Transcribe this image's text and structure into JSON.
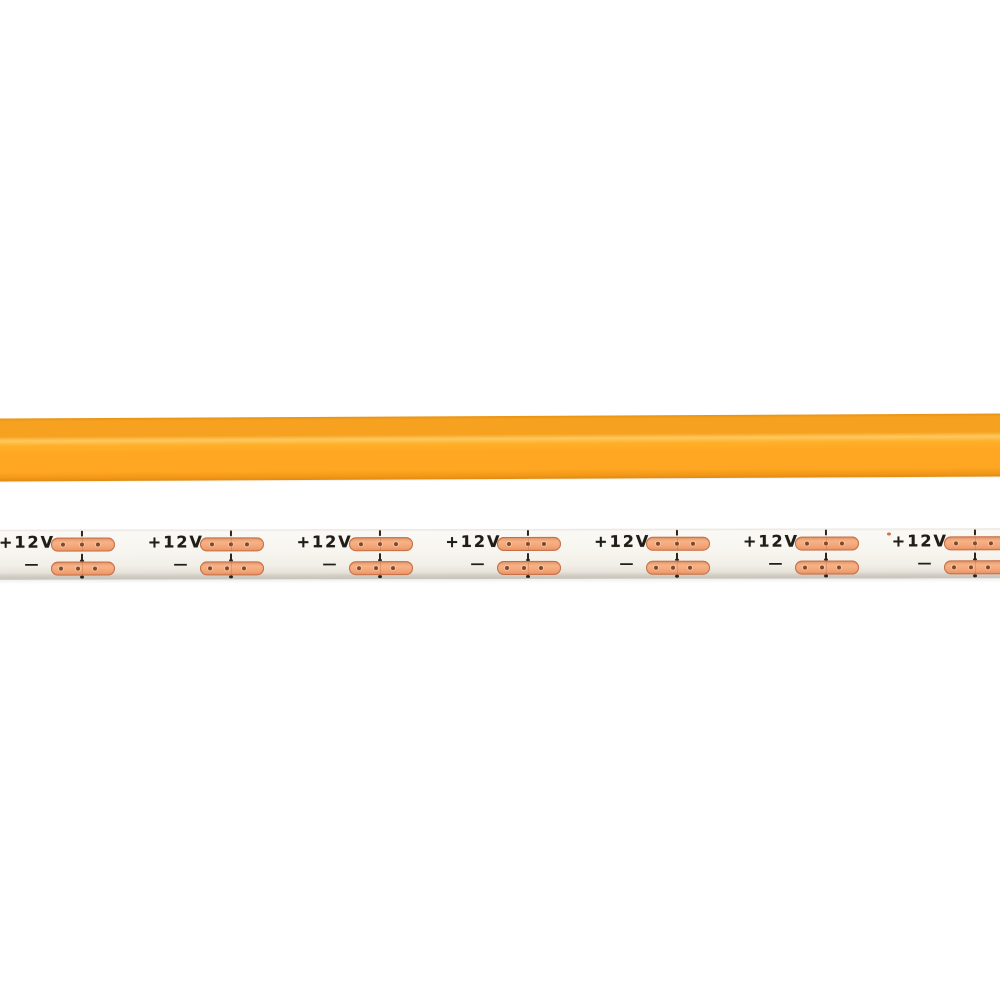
{
  "scene": {
    "background": "#ffffff",
    "description": "COB LED strip light, front phosphor view above and PCB back view below"
  },
  "front_strip": {
    "main_color": "#ffa722",
    "bevel_color": "#f6a120",
    "highlight_color": "#ffc95e",
    "edge_dark_color": "#e89214"
  },
  "back_strip": {
    "board_color": "#f7f5ef",
    "edge_shadow_color": "#cbc7be",
    "segment_count": 7,
    "voltage_label": "+12V",
    "minus_label": "−",
    "label_color": "#201d18",
    "mark_color": "#2a241c",
    "pad_fill_color": "#f2a173",
    "pad_center_color": "#f7b285",
    "pad_border_color": "#c46f47",
    "via_color": "#7d4a30"
  }
}
